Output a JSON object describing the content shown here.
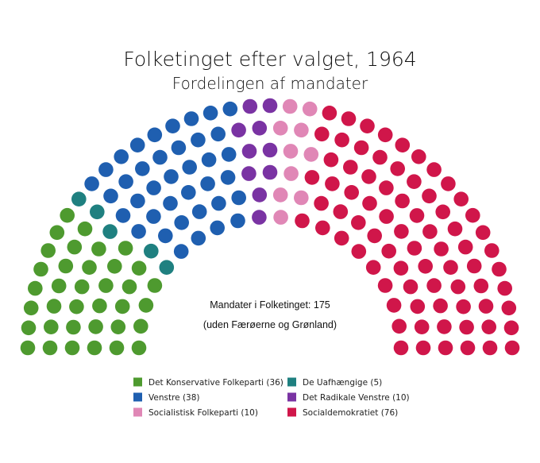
{
  "chart_data": {
    "type": "parliament",
    "title": "Folketinget efter valget, 1964",
    "subtitle": "Fordelingen af mandater",
    "total_note": "Mandater i Folketinget: 175",
    "sub_note": "(uden Færøerne og Grønland)",
    "total": 175,
    "series": [
      {
        "name": "Det Konservative Folkeparti",
        "seats": 36,
        "color": "#4e9a2f",
        "legend": "Det Konservative Folkeparti (36)"
      },
      {
        "name": "De Uafhængige",
        "seats": 5,
        "color": "#1f8080",
        "legend": "De Uafhængige (5)"
      },
      {
        "name": "Venstre",
        "seats": 38,
        "color": "#1f5fb0",
        "legend": "Venstre (38)"
      },
      {
        "name": "Det Radikale Venstre",
        "seats": 10,
        "color": "#7a33a3",
        "legend": "Det Radikale Venstre (10)"
      },
      {
        "name": "Socialistisk Folkeparti",
        "seats": 10,
        "color": "#e087b6",
        "legend": "Socialistisk Folkeparti (10)"
      },
      {
        "name": "Socialdemokratiet",
        "seats": 76,
        "color": "#d0164a",
        "legend": "Socialdemokratiet (76)"
      }
    ],
    "seat_order": [
      "Det Konservative Folkeparti",
      "De Uafhængige",
      "Venstre",
      "Det Radikale Venstre",
      "Socialistisk Folkeparti",
      "Socialdemokratiet"
    ],
    "legend_order": [
      "Det Konservative Folkeparti",
      "Venstre",
      "Socialistisk Folkeparti",
      "De Uafhængige",
      "Det Radikale Venstre",
      "Socialdemokratiet"
    ]
  }
}
